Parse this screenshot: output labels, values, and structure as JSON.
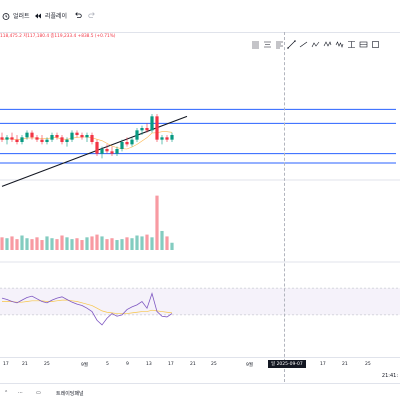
{
  "toolbar": {
    "alert_label": "얼러트",
    "replay_label": "리플레이"
  },
  "legend": {
    "ohlc_text": "118,475.2  저117,180.4  종119,233.4  +838.5 (+0.71%)"
  },
  "xaxis": {
    "ticks": [
      "17",
      "21",
      "25",
      "9월",
      "5",
      "9",
      "13",
      "17",
      "21",
      "25",
      "9월",
      "17",
      "21",
      "25"
    ],
    "crosshair_label": "일 2025-09-07"
  },
  "status": {
    "clock": "21:41:"
  },
  "footer": {
    "panel_label": "트레이딩패널"
  },
  "colors": {
    "up": "#089981",
    "down": "#f23645",
    "hline": "#2962ff",
    "trend": "#131722",
    "rsi": "#7e57c2",
    "rsi_ma": "#f7c548"
  },
  "chart_data": {
    "type": "candlestick",
    "candles": [
      {
        "o": 54,
        "h": 56,
        "l": 52,
        "c": 53
      },
      {
        "o": 53,
        "h": 55,
        "l": 51,
        "c": 54
      },
      {
        "o": 54,
        "h": 56,
        "l": 52,
        "c": 53
      },
      {
        "o": 53,
        "h": 55,
        "l": 51,
        "c": 52
      },
      {
        "o": 52,
        "h": 55,
        "l": 51,
        "c": 54
      },
      {
        "o": 54,
        "h": 57,
        "l": 53,
        "c": 56
      },
      {
        "o": 56,
        "h": 57,
        "l": 53,
        "c": 54
      },
      {
        "o": 54,
        "h": 55,
        "l": 52,
        "c": 53
      },
      {
        "o": 53,
        "h": 55,
        "l": 51,
        "c": 52
      },
      {
        "o": 52,
        "h": 54,
        "l": 51,
        "c": 53
      },
      {
        "o": 53,
        "h": 56,
        "l": 52,
        "c": 55
      },
      {
        "o": 55,
        "h": 56,
        "l": 53,
        "c": 54
      },
      {
        "o": 54,
        "h": 55,
        "l": 51,
        "c": 52
      },
      {
        "o": 52,
        "h": 54,
        "l": 50,
        "c": 53
      },
      {
        "o": 53,
        "h": 57,
        "l": 52,
        "c": 56
      },
      {
        "o": 56,
        "h": 57,
        "l": 54,
        "c": 55
      },
      {
        "o": 55,
        "h": 56,
        "l": 53,
        "c": 54
      },
      {
        "o": 54,
        "h": 56,
        "l": 52,
        "c": 55
      },
      {
        "o": 55,
        "h": 56,
        "l": 51,
        "c": 52
      },
      {
        "o": 52,
        "h": 53,
        "l": 46,
        "c": 47
      },
      {
        "o": 47,
        "h": 50,
        "l": 45,
        "c": 49
      },
      {
        "o": 49,
        "h": 51,
        "l": 47,
        "c": 48
      },
      {
        "o": 48,
        "h": 50,
        "l": 46,
        "c": 47
      },
      {
        "o": 47,
        "h": 50,
        "l": 46,
        "c": 49
      },
      {
        "o": 49,
        "h": 53,
        "l": 48,
        "c": 52
      },
      {
        "o": 52,
        "h": 54,
        "l": 50,
        "c": 51
      },
      {
        "o": 51,
        "h": 54,
        "l": 50,
        "c": 53
      },
      {
        "o": 53,
        "h": 58,
        "l": 52,
        "c": 57
      },
      {
        "o": 57,
        "h": 59,
        "l": 55,
        "c": 58
      },
      {
        "o": 58,
        "h": 60,
        "l": 56,
        "c": 57
      },
      {
        "o": 57,
        "h": 64,
        "l": 56,
        "c": 63
      },
      {
        "o": 63,
        "h": 64,
        "l": 52,
        "c": 53
      },
      {
        "o": 53,
        "h": 55,
        "l": 51,
        "c": 54
      },
      {
        "o": 54,
        "h": 55,
        "l": 52,
        "c": 53
      },
      {
        "o": 53,
        "h": 56,
        "l": 52,
        "c": 55
      }
    ],
    "volumes": [
      14,
      13,
      15,
      12,
      16,
      13,
      12,
      14,
      11,
      15,
      13,
      12,
      16,
      14,
      12,
      13,
      11,
      14,
      15,
      17,
      15,
      12,
      13,
      11,
      12,
      14,
      13,
      16,
      15,
      17,
      14,
      60,
      21,
      15,
      8
    ],
    "rsi": [
      55,
      53,
      50,
      48,
      52,
      56,
      58,
      54,
      50,
      48,
      52,
      55,
      57,
      53,
      49,
      46,
      44,
      40,
      35,
      22,
      15,
      25,
      32,
      28,
      30,
      38,
      42,
      45,
      50,
      40,
      62,
      35,
      28,
      27,
      32
    ],
    "rsi_ma": [
      50,
      50,
      50,
      49,
      49,
      50,
      51,
      51,
      51,
      50,
      50,
      51,
      52,
      52,
      51,
      50,
      48,
      46,
      44,
      40,
      36,
      34,
      33,
      32,
      32,
      32,
      33,
      34,
      35,
      35,
      37,
      36,
      35,
      34,
      33
    ],
    "horizontal_levels": [
      43,
      47,
      60,
      66
    ],
    "trendline": {
      "from": {
        "index": 0,
        "value": 33
      },
      "to": {
        "index": 37,
        "value": 63
      }
    }
  }
}
